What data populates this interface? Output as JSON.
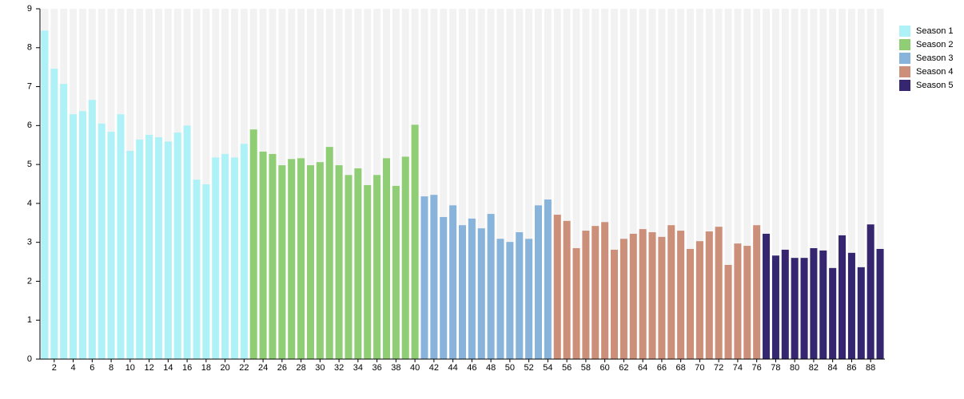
{
  "chart_data": {
    "type": "bar",
    "categories": [
      null,
      2,
      null,
      4,
      null,
      6,
      null,
      8,
      null,
      10,
      null,
      12,
      null,
      14,
      null,
      16,
      null,
      18,
      null,
      20,
      null,
      22,
      null,
      24,
      null,
      26,
      null,
      28,
      null,
      30,
      null,
      32,
      null,
      34,
      null,
      36,
      null,
      38,
      null,
      40,
      null,
      42,
      null,
      44,
      null,
      46,
      null,
      48,
      null,
      50,
      null,
      52,
      null,
      54,
      null,
      56,
      null,
      58,
      null,
      60,
      null,
      62,
      null,
      64,
      null,
      66,
      null,
      68,
      null,
      70,
      null,
      72,
      null,
      74,
      null,
      76,
      null,
      78,
      null,
      80,
      null,
      82,
      null,
      84,
      null,
      86,
      null,
      88,
      null
    ],
    "series": [
      {
        "name": "Season 1",
        "color": "#aef2f7",
        "values": [
          8.44,
          7.46,
          7.07,
          6.29,
          6.37,
          6.66,
          6.05,
          5.84,
          6.29,
          5.35,
          5.64,
          5.76,
          5.7,
          5.59,
          5.82,
          6.0,
          4.61,
          4.49,
          5.18,
          5.27,
          5.18,
          5.53,
          null,
          null,
          null,
          null,
          null,
          null,
          null,
          null,
          null,
          null,
          null,
          null,
          null,
          null,
          null,
          null,
          null,
          null,
          null,
          null,
          null,
          null,
          null,
          null,
          null,
          null,
          null,
          null,
          null,
          null,
          null,
          null,
          null,
          null,
          null,
          null,
          null,
          null,
          null,
          null,
          null,
          null,
          null,
          null,
          null,
          null,
          null,
          null,
          null,
          null,
          null,
          null,
          null,
          null,
          null,
          null,
          null,
          null,
          null,
          null,
          null,
          null,
          null,
          null,
          null,
          null,
          null
        ]
      },
      {
        "name": "Season 2",
        "color": "#8fce74",
        "values": [
          null,
          null,
          null,
          null,
          null,
          null,
          null,
          null,
          null,
          null,
          null,
          null,
          null,
          null,
          null,
          null,
          null,
          null,
          null,
          null,
          null,
          null,
          5.9,
          5.33,
          5.27,
          4.98,
          5.14,
          5.16,
          4.98,
          5.06,
          5.45,
          4.98,
          4.73,
          4.9,
          4.47,
          4.73,
          5.16,
          4.45,
          5.2,
          6.02,
          null,
          null,
          null,
          null,
          null,
          null,
          null,
          null,
          null,
          null,
          null,
          null,
          null,
          null,
          null,
          null,
          null,
          null,
          null,
          null,
          null,
          null,
          null,
          null,
          null,
          null,
          null,
          null,
          null,
          null,
          null,
          null,
          null,
          null,
          null,
          null,
          null,
          null,
          null,
          null,
          null,
          null,
          null,
          null,
          null,
          null,
          null,
          null,
          null
        ]
      },
      {
        "name": "Season 3",
        "color": "#88b4dc",
        "values": [
          null,
          null,
          null,
          null,
          null,
          null,
          null,
          null,
          null,
          null,
          null,
          null,
          null,
          null,
          null,
          null,
          null,
          null,
          null,
          null,
          null,
          null,
          null,
          null,
          null,
          null,
          null,
          null,
          null,
          null,
          null,
          null,
          null,
          null,
          null,
          null,
          null,
          null,
          null,
          null,
          4.18,
          4.22,
          3.65,
          3.95,
          3.44,
          3.61,
          3.36,
          3.73,
          3.09,
          3.01,
          3.26,
          3.09,
          3.95,
          4.1,
          null,
          null,
          null,
          null,
          null,
          null,
          null,
          null,
          null,
          null,
          null,
          null,
          null,
          null,
          null,
          null,
          null,
          null,
          null,
          null,
          null,
          null,
          null,
          null,
          null,
          null,
          null,
          null,
          null,
          null,
          null,
          null,
          null,
          null,
          null
        ]
      },
      {
        "name": "Season 4",
        "color": "#cc907a",
        "values": [
          null,
          null,
          null,
          null,
          null,
          null,
          null,
          null,
          null,
          null,
          null,
          null,
          null,
          null,
          null,
          null,
          null,
          null,
          null,
          null,
          null,
          null,
          null,
          null,
          null,
          null,
          null,
          null,
          null,
          null,
          null,
          null,
          null,
          null,
          null,
          null,
          null,
          null,
          null,
          null,
          null,
          null,
          null,
          null,
          null,
          null,
          null,
          null,
          null,
          null,
          null,
          null,
          null,
          null,
          3.71,
          3.55,
          2.85,
          3.3,
          3.42,
          3.52,
          2.81,
          3.09,
          3.22,
          3.34,
          3.26,
          3.14,
          3.44,
          3.3,
          2.83,
          3.03,
          3.28,
          3.4,
          2.42,
          2.97,
          2.91,
          3.44,
          null,
          null,
          null,
          null,
          null,
          null,
          null,
          null,
          null,
          null,
          null,
          null,
          null
        ]
      },
      {
        "name": "Season 5",
        "color": "#35266f",
        "values": [
          null,
          null,
          null,
          null,
          null,
          null,
          null,
          null,
          null,
          null,
          null,
          null,
          null,
          null,
          null,
          null,
          null,
          null,
          null,
          null,
          null,
          null,
          null,
          null,
          null,
          null,
          null,
          null,
          null,
          null,
          null,
          null,
          null,
          null,
          null,
          null,
          null,
          null,
          null,
          null,
          null,
          null,
          null,
          null,
          null,
          null,
          null,
          null,
          null,
          null,
          null,
          null,
          null,
          null,
          null,
          null,
          null,
          null,
          null,
          null,
          null,
          null,
          null,
          null,
          null,
          null,
          null,
          null,
          null,
          null,
          null,
          null,
          null,
          null,
          null,
          null,
          3.22,
          2.66,
          2.81,
          2.6,
          2.6,
          2.85,
          2.79,
          2.34,
          3.18,
          2.73,
          2.36,
          3.46,
          2.83
        ]
      }
    ],
    "ylim": [
      0,
      9
    ],
    "yticks": [
      0,
      1,
      2,
      3,
      4,
      5,
      6,
      7,
      8,
      9
    ],
    "legend": "top-right"
  }
}
